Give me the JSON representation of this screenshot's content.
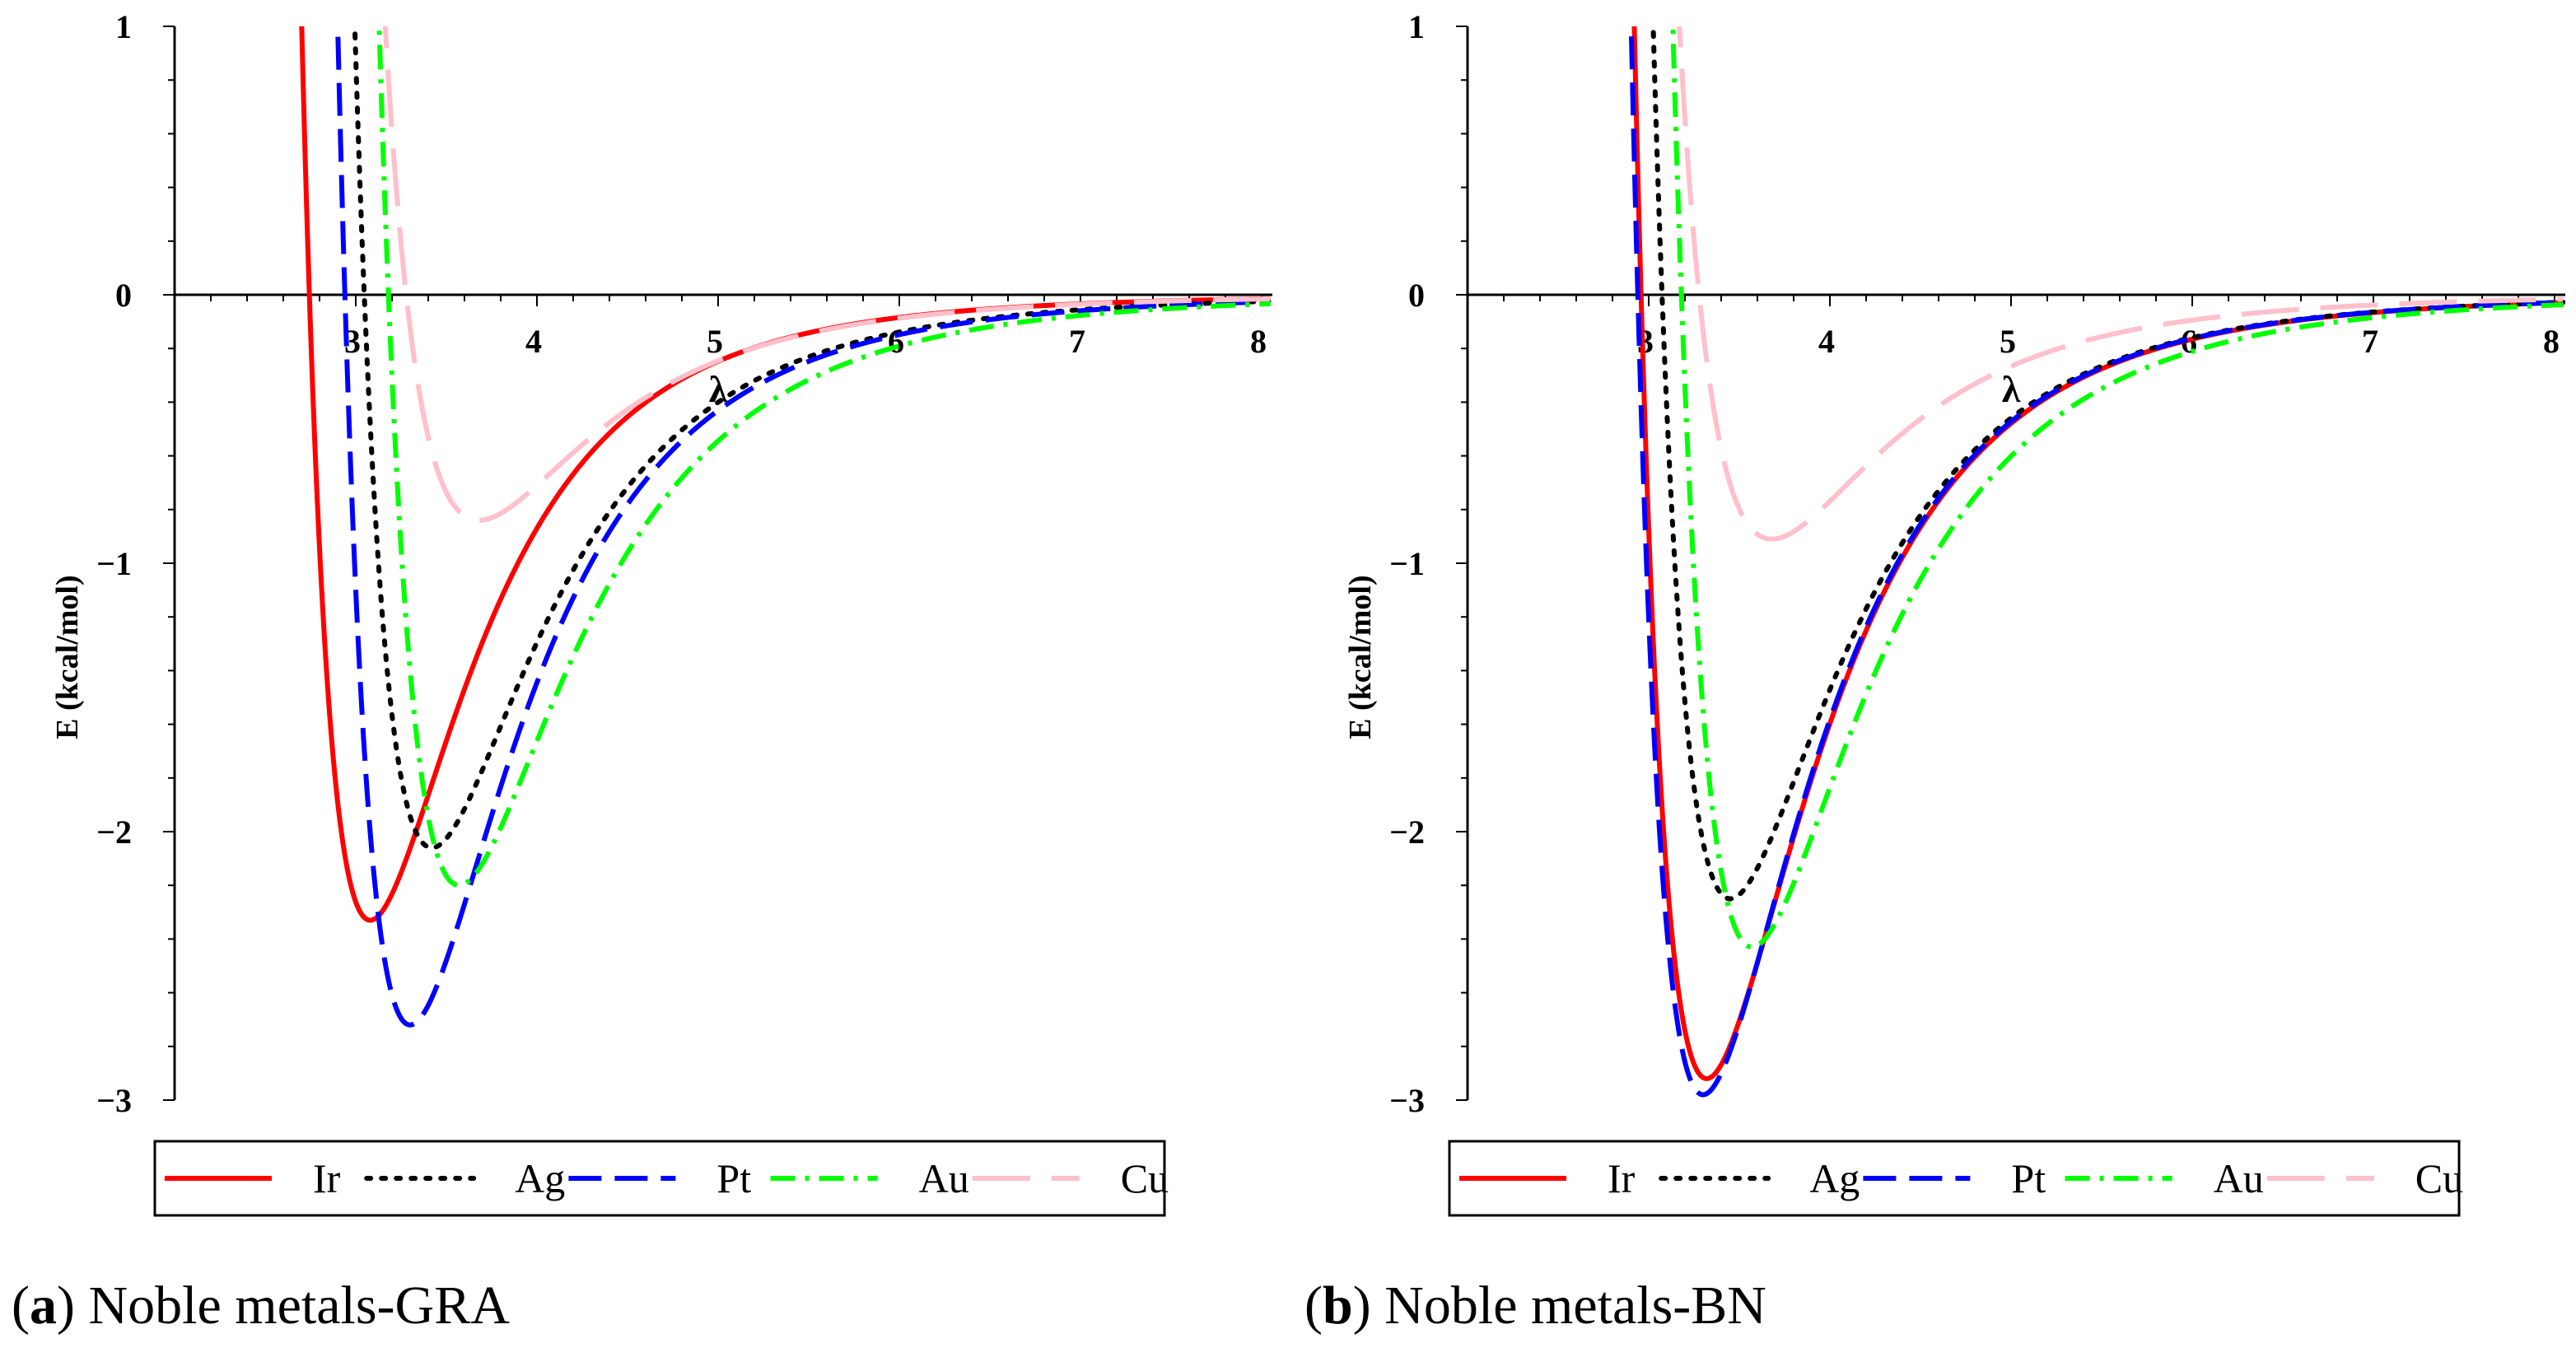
{
  "chart_data": [
    {
      "type": "line",
      "panel_letter": "a",
      "caption": "Noble metals-GRA",
      "xlabel": "λ",
      "ylabel": "E (kcal/mol)",
      "xlim": [
        2.0,
        8.05
      ],
      "ylim": [
        -3.0,
        1.0
      ],
      "x_ticks": [
        3,
        4,
        5,
        6,
        7,
        8
      ],
      "y_ticks": [
        1,
        0,
        -1,
        -2,
        -3
      ],
      "legend_position": "bottom",
      "grid": false,
      "series": [
        {
          "name": "Ir",
          "color": "#ff0000",
          "dash": "solid",
          "x0": 3.08,
          "depth": 2.33
        },
        {
          "name": "Ag",
          "color": "#000000",
          "dash": "dotted",
          "x0": 3.42,
          "depth": 2.06
        },
        {
          "name": "Pt",
          "color": "#0000ff",
          "dash": "dashed",
          "x0": 3.3,
          "depth": 2.72
        },
        {
          "name": "Au",
          "color": "#00ff00",
          "dash": "dashdot",
          "x0": 3.57,
          "depth": 2.2
        },
        {
          "name": "Cu",
          "color": "#ffc0cb",
          "dash": "longdash",
          "x0": 3.68,
          "depth": 0.84
        }
      ]
    },
    {
      "type": "line",
      "panel_letter": "b",
      "caption": "Noble metals-BN",
      "xlabel": "λ",
      "ylabel": "E (kcal/mol)",
      "xlim": [
        2.0,
        8.05
      ],
      "ylim": [
        -3.0,
        1.0
      ],
      "x_ticks": [
        3,
        4,
        5,
        6,
        7,
        8
      ],
      "y_ticks": [
        1,
        0,
        -1,
        -2,
        -3
      ],
      "legend_position": "bottom",
      "grid": false,
      "series": [
        {
          "name": "Ir",
          "color": "#ff0000",
          "dash": "solid",
          "x0": 3.32,
          "depth": 2.92
        },
        {
          "name": "Ag",
          "color": "#000000",
          "dash": "dotted",
          "x0": 3.45,
          "depth": 2.25
        },
        {
          "name": "Pt",
          "color": "#0000ff",
          "dash": "dashed",
          "x0": 3.3,
          "depth": 2.98
        },
        {
          "name": "Au",
          "color": "#00ff00",
          "dash": "dashdot",
          "x0": 3.57,
          "depth": 2.43
        },
        {
          "name": "Cu",
          "color": "#ffc0cb",
          "dash": "longdash",
          "x0": 3.68,
          "depth": 0.91
        }
      ]
    }
  ]
}
